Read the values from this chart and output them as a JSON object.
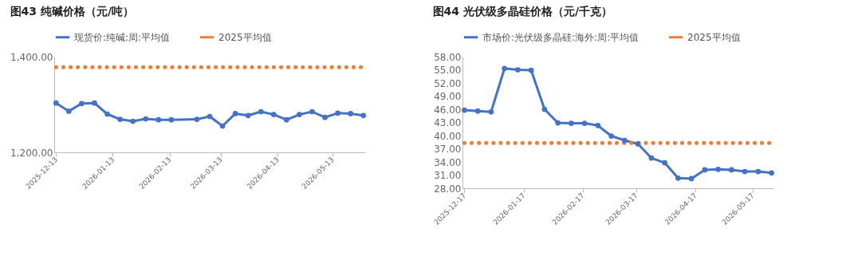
{
  "chart_data": [
    {
      "type": "line",
      "title": "图43 纯碱价格（元/吨）",
      "legend": "top",
      "grid": false,
      "xlim": [
        "2025-12-12",
        "2026-05-31"
      ],
      "xticks": [
        "2025-12-13",
        "2026-01-13",
        "2026-02-13",
        "2026-03-13",
        "2026-04-13",
        "2026-05-13"
      ],
      "ylim": [
        1200,
        1400
      ],
      "yticks": [
        {
          "value": 1200,
          "label": "1,200.00"
        },
        {
          "value": 1400,
          "label": "1,400.00"
        }
      ],
      "series": [
        {
          "name": "现货价:纯碱:周:平均值",
          "color": "#4472c4",
          "marker": "circle",
          "line_style": "solid",
          "x": [
            "2025-12-13",
            "2025-12-20",
            "2025-12-27",
            "2026-01-03",
            "2026-01-10",
            "2026-01-17",
            "2026-01-24",
            "2026-01-31",
            "2026-02-07",
            "2026-02-14",
            "2026-02-28",
            "2026-03-07",
            "2026-03-14",
            "2026-03-21",
            "2026-03-28",
            "2026-04-04",
            "2026-04-11",
            "2026-04-18",
            "2026-04-25",
            "2026-05-02",
            "2026-05-09",
            "2026-05-16",
            "2026-05-23",
            "2026-05-30"
          ],
          "values": [
            1303,
            1286,
            1302,
            1303,
            1280,
            1269,
            1265,
            1270,
            1268,
            1268,
            1269,
            1275,
            1255,
            1281,
            1277,
            1285,
            1279,
            1268,
            1279,
            1285,
            1273,
            1282,
            1281,
            1277
          ]
        },
        {
          "name": "2025平均值",
          "color": "#ed7d31",
          "marker": "none",
          "line_style": "dotted",
          "x": [
            "2025-12-13",
            "2026-05-30"
          ],
          "values": [
            1378,
            1378
          ]
        }
      ]
    },
    {
      "type": "line",
      "title": "图44 光伏级多晶硅价格（元/千克）",
      "legend": "top",
      "grid": false,
      "xlim": [
        "2025-12-16",
        "2026-05-28"
      ],
      "xticks": [
        "2025-12-17",
        "2026-01-17",
        "2026-02-17",
        "2026-03-17",
        "2026-04-17",
        "2026-05-17"
      ],
      "ylim": [
        28,
        58
      ],
      "yticks": [
        {
          "value": 28,
          "label": "28.00"
        },
        {
          "value": 31,
          "label": "31.00"
        },
        {
          "value": 34,
          "label": "34.00"
        },
        {
          "value": 37,
          "label": "37.00"
        },
        {
          "value": 40,
          "label": "40.00"
        },
        {
          "value": 43,
          "label": "43.00"
        },
        {
          "value": 46,
          "label": "46.00"
        },
        {
          "value": 49,
          "label": "49.00"
        },
        {
          "value": 52,
          "label": "52.00"
        },
        {
          "value": 55,
          "label": "55.00"
        },
        {
          "value": 58,
          "label": "58.00"
        }
      ],
      "series": [
        {
          "name": "市场价:光伏级多晶硅:海外:周:平均值",
          "color": "#4472c4",
          "marker": "circle",
          "line_style": "solid",
          "x": [
            "2025-12-17",
            "2025-12-24",
            "2025-12-31",
            "2026-01-07",
            "2026-01-14",
            "2026-01-21",
            "2026-01-28",
            "2026-02-04",
            "2026-02-11",
            "2026-02-18",
            "2026-02-25",
            "2026-03-04",
            "2026-03-11",
            "2026-03-18",
            "2026-03-25",
            "2026-04-01",
            "2026-04-08",
            "2026-04-15",
            "2026-04-22",
            "2026-04-29",
            "2026-05-06",
            "2026-05-13",
            "2026-05-20",
            "2026-05-27"
          ],
          "values": [
            45.8,
            45.6,
            45.4,
            55.3,
            55.0,
            54.9,
            46.0,
            42.9,
            42.8,
            42.8,
            42.3,
            39.9,
            38.9,
            38.1,
            34.9,
            33.8,
            30.3,
            30.2,
            32.2,
            32.3,
            32.2,
            31.8,
            31.8,
            31.5
          ]
        },
        {
          "name": "2025平均值",
          "color": "#ed7d31",
          "marker": "none",
          "line_style": "dotted",
          "x": [
            "2025-12-17",
            "2026-05-27"
          ],
          "values": [
            38.3,
            38.3
          ]
        }
      ]
    }
  ]
}
